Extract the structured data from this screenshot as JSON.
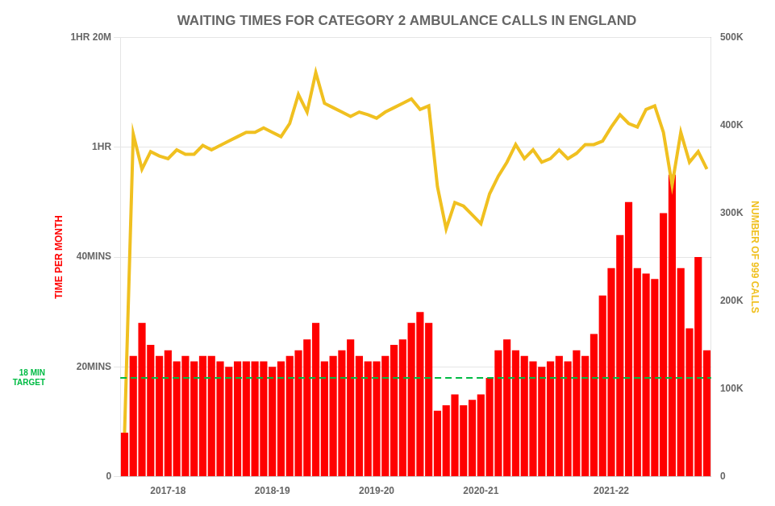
{
  "chart_data": {
    "type": "bar",
    "title": "WAITING TIMES FOR CATEGORY 2 AMBULANCE CALLS IN ENGLAND",
    "y_label": "TIME PER MONTH",
    "y2_label": "NUMBER OF 999 CALLS",
    "categories": [
      null,
      null,
      null,
      null,
      null,
      "2017-18",
      null,
      null,
      null,
      null,
      null,
      null,
      null,
      null,
      null,
      null,
      null,
      "2018-19",
      null,
      null,
      null,
      null,
      null,
      null,
      null,
      null,
      null,
      null,
      null,
      "2019-20",
      null,
      null,
      null,
      null,
      null,
      null,
      null,
      null,
      null,
      null,
      null,
      "2020-21",
      null,
      null,
      null,
      null,
      null,
      null,
      null,
      null,
      null,
      null,
      null,
      null,
      null,
      null,
      "2021-22",
      null,
      null,
      null,
      null,
      null,
      null,
      null,
      null,
      null,
      null,
      null
    ],
    "series": [
      {
        "type": "bar",
        "color": "#ff0000",
        "values": [
          8,
          22,
          28,
          24,
          22,
          23,
          21,
          22,
          21,
          22,
          22,
          21,
          20,
          21,
          21,
          21,
          21,
          20,
          21,
          22,
          23,
          25,
          28,
          21,
          22,
          23,
          25,
          22,
          21,
          21,
          22,
          24,
          25,
          28,
          30,
          28,
          12,
          13,
          15,
          13,
          14,
          15,
          18,
          23,
          25,
          23,
          22,
          21,
          20,
          21,
          22,
          21,
          23,
          22,
          26,
          33,
          38,
          44,
          50,
          38,
          37,
          36,
          48,
          55,
          38,
          27,
          40,
          23
        ]
      },
      {
        "type": "line",
        "color": "#f0c020",
        "axis": "y2",
        "values": [
          50,
          390,
          350,
          370,
          365,
          362,
          372,
          367,
          367,
          377,
          372,
          377,
          382,
          387,
          392,
          392,
          397,
          392,
          387,
          402,
          435,
          415,
          460,
          425,
          420,
          415,
          410,
          415,
          412,
          408,
          415,
          420,
          425,
          430,
          418,
          422,
          330,
          282,
          312,
          308,
          298,
          288,
          322,
          342,
          358,
          378,
          362,
          372,
          358,
          362,
          372,
          362,
          368,
          378,
          378,
          382,
          398,
          412,
          402,
          398,
          418,
          422,
          392,
          332,
          392,
          358,
          370,
          350
        ]
      }
    ],
    "ylim": [
      0,
      80
    ],
    "yticks": [
      0,
      {
        "value": 20,
        "label": "20MINS"
      },
      {
        "value": 40,
        "label": "40MINS"
      },
      {
        "value": 60,
        "label": "1HR"
      },
      {
        "value": 80,
        "label": "1HR 20M"
      }
    ],
    "y2lim": [
      0,
      500
    ],
    "y2ticks": [
      0,
      {
        "value": 100,
        "label": "100K"
      },
      {
        "value": 200,
        "label": "200K"
      },
      {
        "value": 300,
        "label": "300K"
      },
      {
        "value": 400,
        "label": "400K"
      },
      {
        "value": 500,
        "label": "500K"
      }
    ],
    "grid": true,
    "annotations": [
      {
        "text": "18 MIN\nTARGET",
        "y": 18,
        "color": "#00bb44",
        "line_style": "dashed"
      }
    ]
  }
}
